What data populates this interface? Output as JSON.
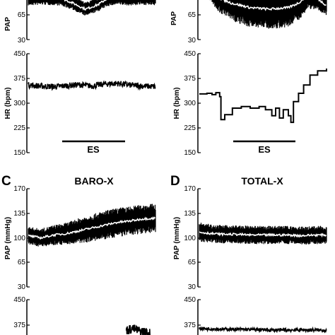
{
  "chart_data": [
    {
      "id": "A_pap",
      "type": "line",
      "ylabel": "PAP",
      "yticks": [
        "30",
        "65"
      ],
      "ylim": [
        30,
        95
      ],
      "series": [
        {
          "x": [
            0,
            0.12,
            0.25,
            0.35,
            0.45,
            0.55,
            0.62,
            0.7,
            0.8,
            0.9,
            1.0
          ],
          "mean": [
            85,
            86,
            85,
            78,
            70,
            76,
            84,
            86,
            85,
            86,
            85
          ],
          "spread": [
            8,
            8,
            8,
            7,
            7,
            7,
            8,
            8,
            8,
            8,
            8
          ]
        }
      ]
    },
    {
      "id": "A_hr",
      "type": "line",
      "ylabel": "HR (bpm)",
      "yticks": [
        "450",
        "375",
        "300",
        "225",
        "150"
      ],
      "ylim": [
        150,
        450
      ],
      "series": [
        {
          "x": [
            0,
            0.1,
            0.2,
            0.3,
            0.4,
            0.5,
            0.6,
            0.7,
            0.8,
            0.9,
            1.0
          ],
          "mean": [
            355,
            352,
            350,
            353,
            356,
            352,
            358,
            360,
            355,
            352,
            350
          ],
          "jitter": 9
        }
      ],
      "annotation": {
        "label": "ES",
        "x_start": 0.27,
        "x_end": 0.77
      }
    },
    {
      "id": "B_pap",
      "type": "line",
      "ylabel": "PAP",
      "yticks": [
        "65",
        "30"
      ],
      "ylim": [
        30,
        95
      ],
      "series": [
        {
          "x": [
            0,
            0.08,
            0.15,
            0.25,
            0.4,
            0.55,
            0.7,
            0.78,
            0.85,
            0.92,
            1.0
          ],
          "mean": [
            95,
            92,
            85,
            78,
            72,
            70,
            72,
            78,
            88,
            85,
            75
          ],
          "spread": [
            4,
            8,
            14,
            18,
            20,
            20,
            20,
            18,
            14,
            12,
            10
          ]
        }
      ]
    },
    {
      "id": "B_hr",
      "type": "line",
      "ylabel": "HR (bpm)",
      "yticks": [
        "450",
        "375",
        "300",
        "225",
        "150"
      ],
      "ylim": [
        150,
        450
      ],
      "series": [
        {
          "steps": [
            [
              0,
              328
            ],
            [
              0.06,
              330
            ],
            [
              0.1,
              326
            ],
            [
              0.13,
              332
            ],
            [
              0.16,
              320
            ],
            [
              0.17,
              250
            ],
            [
              0.2,
              265
            ],
            [
              0.26,
              285
            ],
            [
              0.33,
              290
            ],
            [
              0.4,
              285
            ],
            [
              0.47,
              290
            ],
            [
              0.52,
              280
            ],
            [
              0.57,
              262
            ],
            [
              0.6,
              285
            ],
            [
              0.63,
              255
            ],
            [
              0.66,
              280
            ],
            [
              0.7,
              262
            ],
            [
              0.72,
              242
            ],
            [
              0.74,
              305
            ],
            [
              0.78,
              330
            ],
            [
              0.82,
              355
            ],
            [
              0.87,
              385
            ],
            [
              0.93,
              398
            ],
            [
              1.0,
              405
            ]
          ]
        }
      ],
      "annotation": {
        "label": "ES",
        "x_start": 0.17,
        "x_end": 0.72
      }
    },
    {
      "id": "C_pap",
      "type": "line",
      "title": "BARO-X",
      "panel": "C",
      "ylabel": "PAP (mmHg)",
      "yticks": [
        "170",
        "135",
        "100",
        "65",
        "30"
      ],
      "ylim": [
        30,
        170
      ],
      "series": [
        {
          "x": [
            0,
            0.1,
            0.2,
            0.3,
            0.4,
            0.5,
            0.6,
            0.7,
            0.8,
            0.9,
            1.0
          ],
          "mean": [
            103,
            100,
            104,
            106,
            110,
            114,
            118,
            122,
            124,
            127,
            128
          ],
          "spread": [
            10,
            10,
            11,
            12,
            14,
            15,
            16,
            16,
            16,
            16,
            16
          ]
        }
      ]
    },
    {
      "id": "C_hr",
      "type": "line",
      "ylabel": "HR (bpm)",
      "yticks": [
        "450",
        "375"
      ],
      "ylim": [
        300,
        450
      ],
      "series": [
        {
          "x": [
            0.77,
            0.82,
            0.87,
            0.92,
            0.96
          ],
          "mean": [
            360,
            365,
            358,
            355,
            350
          ],
          "jitter": 14
        }
      ]
    },
    {
      "id": "D_pap",
      "type": "line",
      "title": "TOTAL-X",
      "panel": "D",
      "ylabel": "PAP (mmHg)",
      "yticks": [
        "170",
        "135",
        "100",
        "65",
        "30"
      ],
      "ylim": [
        30,
        170
      ],
      "series": [
        {
          "x": [
            0,
            0.1,
            0.2,
            0.3,
            0.4,
            0.5,
            0.6,
            0.7,
            0.8,
            0.9,
            1.0
          ],
          "mean": [
            108,
            106,
            105,
            105,
            104,
            104,
            104,
            104,
            103,
            104,
            104
          ],
          "spread": [
            11,
            10,
            10,
            10,
            10,
            10,
            10,
            10,
            10,
            10,
            10
          ]
        }
      ]
    },
    {
      "id": "D_hr",
      "type": "line",
      "ylabel": "HR (bpm)",
      "yticks": [
        "450",
        "375"
      ],
      "ylim": [
        300,
        450
      ],
      "series": [
        {
          "x": [
            0,
            0.2,
            0.4,
            0.6,
            0.8,
            1.0
          ],
          "mean": [
            365,
            363,
            362,
            360,
            361,
            360
          ],
          "jitter": 5
        }
      ]
    }
  ]
}
